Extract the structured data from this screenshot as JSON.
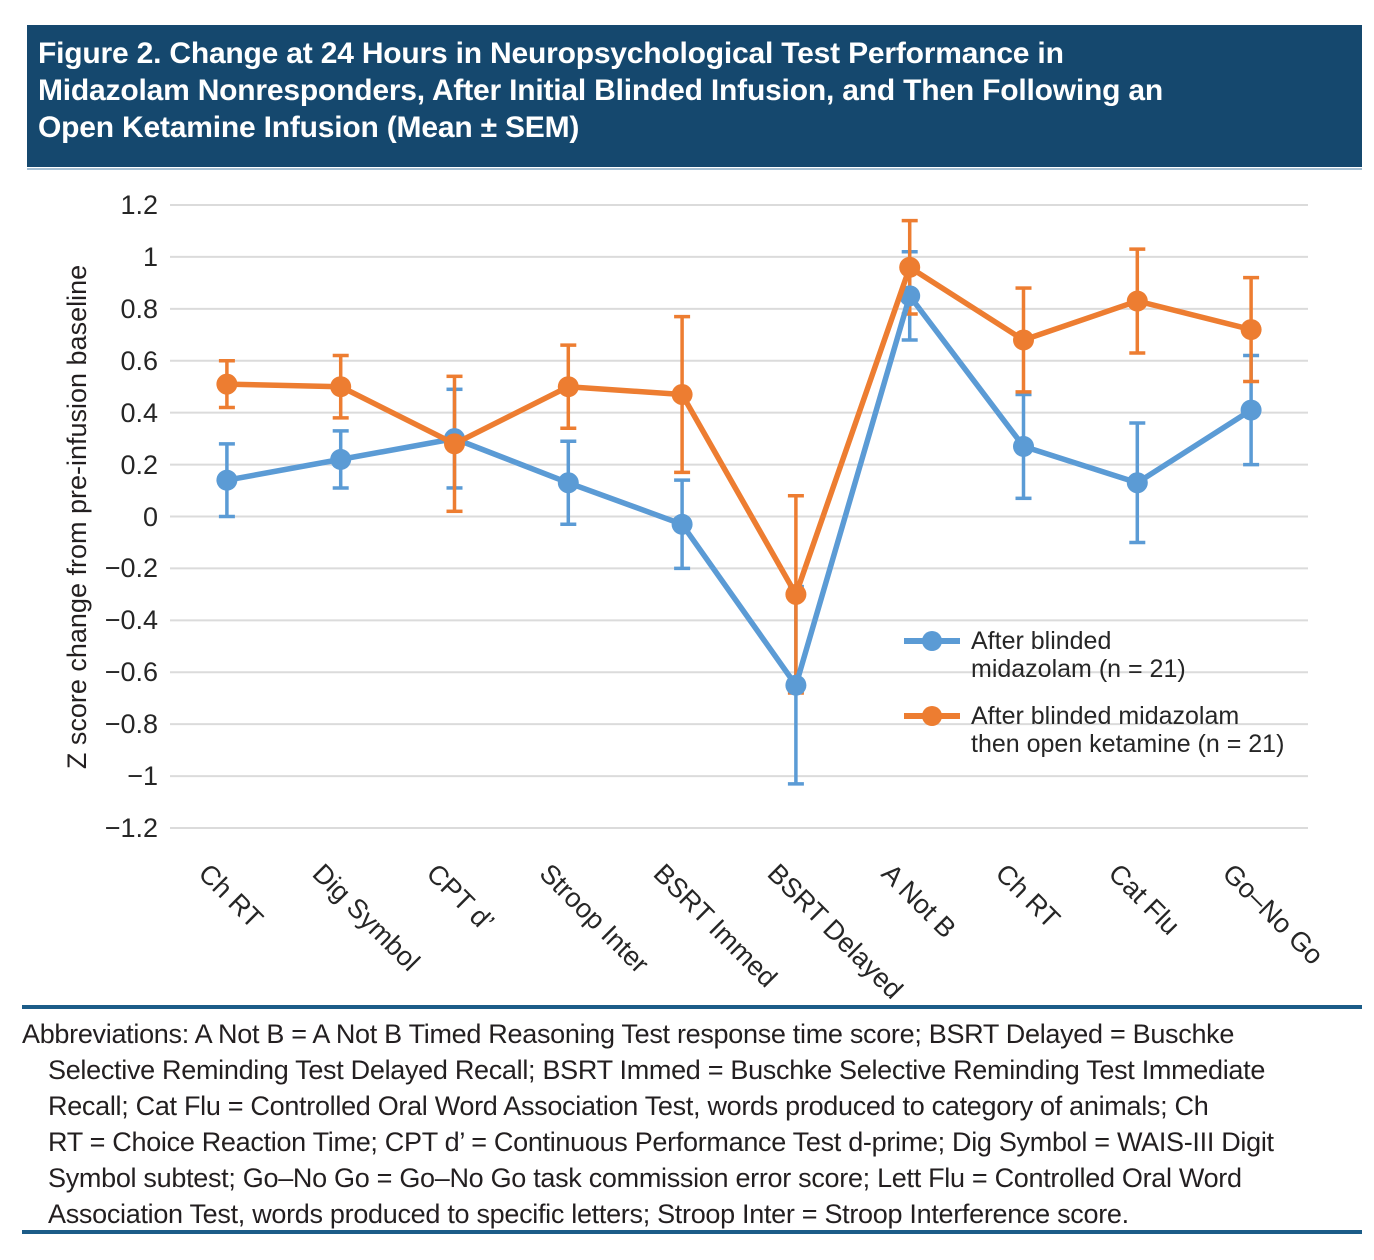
{
  "header": {
    "title": "Figure 2. Change at 24 Hours in Neuropsychological Test Performance in\nMidazolam Nonresponders, After Initial Blinded Infusion, and Then Following an\nOpen Ketamine Infusion (Mean ± SEM)"
  },
  "chart_data": {
    "type": "line",
    "title": "Change at 24 Hours in Neuropsychological Test Performance in Midazolam Nonresponders (Mean ± SEM)",
    "xlabel": "",
    "ylabel": "Z score change from pre-infusion baseline",
    "ylim": [
      -1.2,
      1.2
    ],
    "ytick_step": 0.2,
    "ytick_labels": [
      "1.2",
      "1",
      "0.8",
      "0.6",
      "0.4",
      "0.2",
      "0",
      "−0.2",
      "−0.4",
      "−0.6",
      "−0.8",
      "−1",
      "−1.2"
    ],
    "grid": true,
    "legend_position": "inside-right",
    "error_bars": true,
    "categories": [
      "Ch RT",
      "Dig Symbol",
      "CPT d’",
      "Stroop Inter",
      "BSRT Immed",
      "BSRT Delayed",
      "A Not B",
      "Ch RT",
      "Cat Flu",
      "Go–No Go"
    ],
    "series": [
      {
        "name": "After blinded midazolam (n = 21)",
        "legend_lines": [
          "After blinded",
          "midazolam (n = 21)"
        ],
        "color": "#5B9BD5",
        "values": [
          0.14,
          0.22,
          0.3,
          0.13,
          -0.03,
          -0.65,
          0.85,
          0.27,
          0.13,
          0.41
        ],
        "errors": [
          0.14,
          0.11,
          0.19,
          0.16,
          0.17,
          0.38,
          0.17,
          0.2,
          0.23,
          0.21
        ]
      },
      {
        "name": "After blinded midazolam then open ketamine (n = 21)",
        "legend_lines": [
          "After blinded midazolam",
          "then open ketamine (n = 21)"
        ],
        "color": "#ED7D31",
        "values": [
          0.51,
          0.5,
          0.28,
          0.5,
          0.47,
          -0.3,
          0.96,
          0.68,
          0.83,
          0.72
        ],
        "errors": [
          0.09,
          0.12,
          0.26,
          0.16,
          0.3,
          0.38,
          0.18,
          0.2,
          0.2,
          0.2
        ]
      }
    ]
  },
  "footnote": {
    "lines": [
      "Abbreviations: A Not B = A Not B Timed Reasoning Test response time score; BSRT Delayed = Buschke",
      "Selective Reminding Test Delayed Recall; BSRT Immed = Buschke Selective Reminding Test Immediate",
      "Recall; Cat Flu = Controlled Oral Word Association Test, words produced to category of animals; Ch",
      "RT = Choice Reaction Time; CPT d’ = Continuous Performance Test d-prime; Dig Symbol = WAIS-III Digit",
      "Symbol subtest; Go–No Go = Go–No Go task commission error score; Lett Flu = Controlled Oral Word",
      "Association Test, words produced to specific letters; Stroop Inter = Stroop Interference score."
    ]
  },
  "colors": {
    "header_bg": "#15486E",
    "header_text": "#FFFFFF",
    "separator_line": "#1C5C88",
    "series_blue": "#5B9BD5",
    "series_orange": "#ED7D31",
    "gridline": "#DBDBDB",
    "text": "#231F20"
  }
}
